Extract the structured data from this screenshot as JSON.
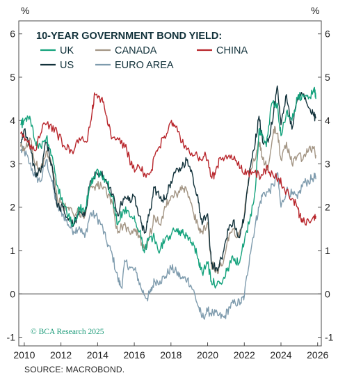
{
  "chart_data": {
    "type": "line",
    "title": "10-YEAR GOVERNMENT BOND YIELD:",
    "ylabel_left": "%",
    "ylabel_right": "%",
    "ylim": [
      -1.2,
      6.3
    ],
    "yticks": [
      -1,
      0,
      1,
      2,
      3,
      4,
      5,
      6
    ],
    "xlim": [
      2009.7,
      2026.2
    ],
    "xticks": [
      2010,
      2012,
      2014,
      2016,
      2018,
      2020,
      2022,
      2024,
      2026
    ],
    "zero_line": true,
    "legend_placement": "top-left",
    "series": [
      {
        "name": "UK",
        "color": "#14a27c",
        "x": [
          2009.8,
          2010.0,
          2010.3,
          2010.6,
          2010.9,
          2011.2,
          2011.5,
          2011.8,
          2012.1,
          2012.4,
          2012.7,
          2013.0,
          2013.3,
          2013.6,
          2013.9,
          2014.2,
          2014.5,
          2014.8,
          2015.1,
          2015.4,
          2015.7,
          2016.0,
          2016.3,
          2016.55,
          2016.8,
          2017.1,
          2017.4,
          2017.7,
          2018.0,
          2018.3,
          2018.6,
          2018.9,
          2019.2,
          2019.5,
          2019.7,
          2020.0,
          2020.2,
          2020.5,
          2020.8,
          2021.1,
          2021.4,
          2021.7,
          2022.0,
          2022.3,
          2022.6,
          2022.8,
          2022.95,
          2023.2,
          2023.5,
          2023.8,
          2024.0,
          2024.3,
          2024.6,
          2024.9,
          2025.2,
          2025.5,
          2025.8,
          2025.9
        ],
        "values": [
          3.9,
          4.0,
          4.1,
          3.5,
          3.4,
          3.6,
          3.2,
          2.5,
          2.1,
          1.8,
          1.6,
          2.0,
          1.9,
          2.5,
          2.8,
          2.75,
          2.6,
          2.25,
          1.6,
          1.95,
          1.9,
          1.8,
          1.45,
          0.95,
          1.3,
          1.3,
          1.0,
          1.3,
          1.35,
          1.5,
          1.4,
          1.35,
          1.2,
          0.8,
          0.5,
          0.7,
          0.3,
          0.2,
          0.25,
          0.6,
          0.8,
          0.7,
          1.2,
          1.7,
          2.4,
          3.8,
          3.7,
          3.4,
          4.4,
          4.4,
          3.65,
          4.2,
          4.0,
          4.5,
          4.6,
          4.5,
          4.75,
          4.5
        ]
      },
      {
        "name": "CANADA",
        "color": "#a39584",
        "x": [
          2009.8,
          2010.0,
          2010.3,
          2010.6,
          2010.9,
          2011.2,
          2011.5,
          2011.8,
          2012.1,
          2012.4,
          2012.7,
          2013.0,
          2013.3,
          2013.6,
          2013.9,
          2014.2,
          2014.5,
          2014.8,
          2015.1,
          2015.4,
          2015.7,
          2016.0,
          2016.3,
          2016.55,
          2016.8,
          2017.1,
          2017.4,
          2017.7,
          2018.0,
          2018.3,
          2018.6,
          2018.9,
          2019.2,
          2019.5,
          2019.7,
          2020.0,
          2020.2,
          2020.5,
          2020.8,
          2021.1,
          2021.4,
          2021.7,
          2022.0,
          2022.3,
          2022.6,
          2022.8,
          2023.0,
          2023.3,
          2023.6,
          2023.8,
          2024.0,
          2024.3,
          2024.6,
          2024.9,
          2025.2,
          2025.5,
          2025.8,
          2025.9
        ],
        "values": [
          3.4,
          3.3,
          3.6,
          3.0,
          2.9,
          3.3,
          3.0,
          2.2,
          2.0,
          2.0,
          1.8,
          1.9,
          1.8,
          2.5,
          2.5,
          2.5,
          2.3,
          2.1,
          1.4,
          1.6,
          1.45,
          1.5,
          1.3,
          1.05,
          1.25,
          1.8,
          1.6,
          2.0,
          2.25,
          2.3,
          2.5,
          2.35,
          1.9,
          1.5,
          1.45,
          1.65,
          0.7,
          0.55,
          0.65,
          1.3,
          1.5,
          1.3,
          1.8,
          2.9,
          3.1,
          3.5,
          3.1,
          2.9,
          3.8,
          3.7,
          3.1,
          3.5,
          3.0,
          3.2,
          3.1,
          3.3,
          3.4,
          3.2
        ]
      },
      {
        "name": "CHINA",
        "color": "#b8252b",
        "x": [
          2009.8,
          2010.2,
          2010.6,
          2011.0,
          2011.4,
          2011.8,
          2012.2,
          2012.6,
          2013.0,
          2013.4,
          2013.7,
          2013.85,
          2014.2,
          2014.5,
          2014.8,
          2015.2,
          2015.6,
          2015.9,
          2016.3,
          2016.6,
          2016.9,
          2017.2,
          2017.6,
          2017.9,
          2018.2,
          2018.6,
          2018.9,
          2019.3,
          2019.6,
          2019.9,
          2020.2,
          2020.4,
          2020.7,
          2021.0,
          2021.4,
          2021.8,
          2022.1,
          2022.5,
          2022.9,
          2023.2,
          2023.6,
          2023.9,
          2024.2,
          2024.6,
          2024.9,
          2025.0,
          2025.2,
          2025.5,
          2025.8,
          2025.9
        ],
        "values": [
          3.7,
          3.5,
          3.3,
          3.9,
          3.9,
          3.7,
          3.4,
          3.3,
          3.6,
          3.5,
          4.2,
          4.6,
          4.5,
          4.1,
          3.6,
          3.6,
          3.3,
          2.9,
          2.9,
          2.75,
          2.8,
          3.3,
          3.6,
          3.9,
          3.9,
          3.5,
          3.35,
          3.2,
          3.1,
          3.2,
          2.7,
          2.75,
          3.15,
          3.2,
          3.1,
          2.9,
          2.75,
          2.8,
          2.7,
          2.9,
          2.7,
          2.65,
          2.4,
          2.2,
          2.0,
          1.8,
          1.65,
          1.7,
          1.8,
          1.8
        ]
      },
      {
        "name": "US",
        "color": "#11313a",
        "x": [
          2009.8,
          2010.0,
          2010.3,
          2010.6,
          2010.9,
          2011.2,
          2011.5,
          2011.8,
          2012.1,
          2012.4,
          2012.7,
          2013.0,
          2013.3,
          2013.6,
          2013.9,
          2014.2,
          2014.5,
          2014.8,
          2015.1,
          2015.4,
          2015.7,
          2016.0,
          2016.3,
          2016.55,
          2016.8,
          2017.1,
          2017.4,
          2017.7,
          2018.0,
          2018.3,
          2018.6,
          2018.9,
          2019.2,
          2019.5,
          2019.7,
          2020.0,
          2020.2,
          2020.5,
          2020.8,
          2021.1,
          2021.4,
          2021.7,
          2022.0,
          2022.3,
          2022.6,
          2022.8,
          2023.0,
          2023.3,
          2023.6,
          2023.8,
          2024.0,
          2024.3,
          2024.6,
          2024.9,
          2025.2,
          2025.5,
          2025.8,
          2025.9
        ],
        "values": [
          3.5,
          3.8,
          3.4,
          2.8,
          2.8,
          3.5,
          3.0,
          2.0,
          2.0,
          1.7,
          1.6,
          1.9,
          1.8,
          2.6,
          2.8,
          2.75,
          2.55,
          2.3,
          1.8,
          2.2,
          2.15,
          2.25,
          1.8,
          1.4,
          1.8,
          2.45,
          2.2,
          2.2,
          2.6,
          2.9,
          2.9,
          3.1,
          2.7,
          2.1,
          1.6,
          1.85,
          0.7,
          0.6,
          0.8,
          1.5,
          1.7,
          1.3,
          1.8,
          2.9,
          3.5,
          4.1,
          3.5,
          3.5,
          4.2,
          4.8,
          3.9,
          4.6,
          3.8,
          4.5,
          4.6,
          4.3,
          4.1,
          4.05
        ]
      },
      {
        "name": "EURO AREA",
        "color": "#7e9bad",
        "x": [
          2009.8,
          2010.0,
          2010.3,
          2010.6,
          2010.9,
          2011.2,
          2011.5,
          2011.8,
          2012.1,
          2012.4,
          2012.7,
          2013.0,
          2013.3,
          2013.6,
          2013.9,
          2014.2,
          2014.5,
          2014.8,
          2015.1,
          2015.3,
          2015.5,
          2015.8,
          2016.1,
          2016.4,
          2016.7,
          2016.9,
          2017.1,
          2017.4,
          2017.7,
          2018.0,
          2018.3,
          2018.6,
          2018.9,
          2019.2,
          2019.5,
          2019.7,
          2020.0,
          2020.3,
          2020.6,
          2020.9,
          2021.2,
          2021.5,
          2021.8,
          2022.0,
          2022.3,
          2022.6,
          2022.8,
          2023.0,
          2023.3,
          2023.6,
          2023.8,
          2024.0,
          2024.3,
          2024.6,
          2024.9,
          2025.2,
          2025.5,
          2025.8,
          2025.9
        ],
        "values": [
          3.3,
          3.3,
          3.0,
          2.7,
          2.6,
          3.1,
          2.6,
          2.0,
          1.85,
          1.6,
          1.45,
          1.55,
          1.3,
          1.85,
          1.8,
          1.6,
          1.2,
          0.9,
          0.35,
          0.15,
          0.75,
          0.6,
          0.5,
          0.1,
          -0.1,
          0.05,
          0.3,
          0.3,
          0.4,
          0.6,
          0.5,
          0.35,
          0.35,
          0.1,
          -0.3,
          -0.55,
          -0.4,
          -0.45,
          -0.5,
          -0.55,
          -0.3,
          -0.2,
          -0.2,
          -0.05,
          0.9,
          1.6,
          2.0,
          2.3,
          2.35,
          2.5,
          2.8,
          2.0,
          2.4,
          2.3,
          2.2,
          2.55,
          2.6,
          2.7,
          2.65
        ]
      }
    ]
  },
  "credit": "© BCA Research 2025",
  "source": "SOURCE: MACROBOND."
}
